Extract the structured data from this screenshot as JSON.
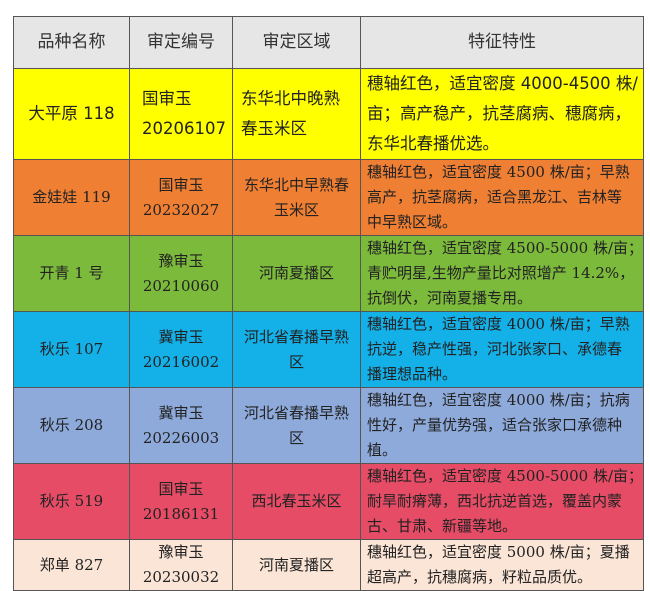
{
  "headers": [
    "品种名称",
    "审定编号",
    "审定区域",
    "特征特性"
  ],
  "rows": [
    {
      "name": "大平原 118",
      "id": [
        "国审玉",
        "20206107"
      ],
      "region": [
        "东华北中晚熟",
        "春玉米区"
      ],
      "traits": [
        "穗轴红色，适宜密度 4000-4500 株/",
        "亩；高产稳产，抗茎腐病、穗腐病，",
        "东华北春播优选。"
      ],
      "color": "#ffff00"
    },
    {
      "name": "金娃娃 119",
      "id": [
        "国审玉",
        "20232027"
      ],
      "region": [
        "东华北中早熟春",
        "玉米区"
      ],
      "traits": [
        "穗轴红色，适宜密度 4500 株/亩；早熟",
        "高产，抗茎腐病，适合黑龙江、吉林等",
        "中早熟区域。"
      ],
      "color": "#ef7f33"
    },
    {
      "name": "开青 1 号",
      "id": [
        "豫审玉",
        "20210060"
      ],
      "region": [
        "河南夏播区"
      ],
      "traits": [
        "穗轴红色，适宜密度 4500-5000 株/亩；",
        "青贮明星,生物产量比对照增产 14.2%，",
        "抗倒伏，河南夏播专用。"
      ],
      "color": "#7cba3c"
    },
    {
      "name": "秋乐 107",
      "id": [
        "冀审玉",
        "20216002"
      ],
      "region": [
        "河北省春播早熟",
        "区"
      ],
      "traits": [
        "穗轴红色，适宜密度 4000 株/亩；早熟",
        "抗逆，稳产性强，河北张家口、承德春",
        "播理想品种。"
      ],
      "color": "#14b0e8"
    },
    {
      "name": "秋乐 208",
      "id": [
        "冀审玉",
        "20226003"
      ],
      "region": [
        "河北省春播早熟",
        "区"
      ],
      "traits": [
        "穗轴红色，适宜密度 4000 株/亩；抗病",
        "性好，产量优势强，适合张家口承德种",
        "植。"
      ],
      "color": "#8eaadb"
    },
    {
      "name": "秋乐 519",
      "id": [
        "国审玉",
        "20186131"
      ],
      "region": [
        "西北春玉米区"
      ],
      "traits": [
        "穗轴红色，适宜密度 4500-5000 株/亩；",
        "耐旱耐瘠薄，西北抗逆首选，覆盖内蒙",
        "古、甘肃、新疆等地。"
      ],
      "color": "#e64c66"
    },
    {
      "name": "郑单 827",
      "id": [
        "豫审玉",
        "20230032"
      ],
      "region": [
        "河南夏播区"
      ],
      "traits": [
        "穗轴红色，适宜密度 5000 株/亩；夏播",
        "超高产，抗穗腐病，籽粒品质优。"
      ],
      "color": "#fbe5d6"
    }
  ]
}
